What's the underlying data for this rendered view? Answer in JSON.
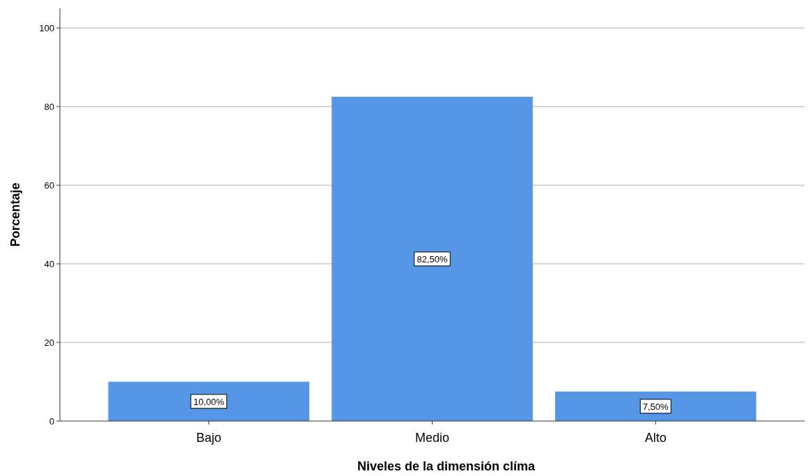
{
  "chart_data": {
    "type": "bar",
    "xlabel": "Niveles de la dimensión clíma",
    "ylabel": "Porcentaje",
    "categories": [
      "Bajo",
      "Medio",
      "Alto"
    ],
    "values": [
      10,
      82.5,
      7.5
    ],
    "value_labels": [
      "10,00%",
      "82,50%",
      "7,50%"
    ],
    "color": "#5596e6",
    "ylim": [
      0,
      105
    ],
    "yticks": [
      0,
      20,
      40,
      60,
      80,
      100
    ],
    "grid": "y"
  }
}
